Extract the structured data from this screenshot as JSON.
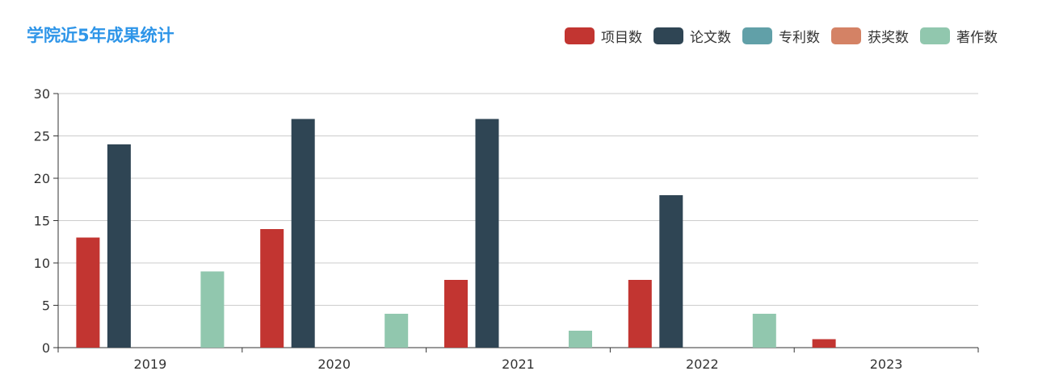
{
  "chart_data": {
    "type": "bar",
    "title": "学院近5年成果统计",
    "categories": [
      "2019",
      "2020",
      "2021",
      "2022",
      "2023"
    ],
    "series": [
      {
        "name": "项目数",
        "color": "#C23531",
        "values": [
          13,
          14,
          8,
          8,
          1
        ]
      },
      {
        "name": "论文数",
        "color": "#2F4554",
        "values": [
          24,
          27,
          27,
          18,
          0
        ]
      },
      {
        "name": "专利数",
        "color": "#61A0A8",
        "values": [
          0,
          0,
          0,
          0,
          0
        ]
      },
      {
        "name": "获奖数",
        "color": "#D48265",
        "values": [
          0,
          0,
          0,
          0,
          0
        ]
      },
      {
        "name": "著作数",
        "color": "#91C7AE",
        "values": [
          9,
          4,
          2,
          4,
          0
        ]
      }
    ],
    "yticks": [
      0,
      5,
      10,
      15,
      20,
      25,
      30
    ],
    "ylim": [
      0,
      30
    ],
    "xlabel": "",
    "ylabel": "",
    "grid": true,
    "legend_position": "top-right"
  }
}
